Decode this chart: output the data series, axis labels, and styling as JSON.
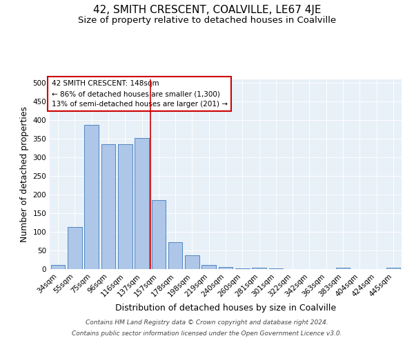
{
  "title": "42, SMITH CRESCENT, COALVILLE, LE67 4JE",
  "subtitle": "Size of property relative to detached houses in Coalville",
  "xlabel": "Distribution of detached houses by size in Coalville",
  "ylabel": "Number of detached properties",
  "categories": [
    "34sqm",
    "55sqm",
    "75sqm",
    "96sqm",
    "116sqm",
    "137sqm",
    "157sqm",
    "178sqm",
    "198sqm",
    "219sqm",
    "240sqm",
    "260sqm",
    "281sqm",
    "301sqm",
    "322sqm",
    "342sqm",
    "363sqm",
    "383sqm",
    "404sqm",
    "424sqm",
    "445sqm"
  ],
  "values": [
    11,
    113,
    387,
    335,
    335,
    353,
    185,
    73,
    37,
    11,
    6,
    2,
    4,
    2,
    0,
    0,
    0,
    4,
    0,
    0,
    4
  ],
  "bar_color": "#aec6e8",
  "bar_edge_color": "#4f86c0",
  "vline_x": 5.5,
  "vline_color": "#cc0000",
  "annotation_text": "42 SMITH CRESCENT: 148sqm\n← 86% of detached houses are smaller (1,300)\n13% of semi-detached houses are larger (201) →",
  "annotation_box_color": "#ffffff",
  "annotation_box_edge_color": "#cc0000",
  "ylim": [
    0,
    510
  ],
  "yticks": [
    0,
    50,
    100,
    150,
    200,
    250,
    300,
    350,
    400,
    450,
    500
  ],
  "background_color": "#e8f0f8",
  "footer_line1": "Contains HM Land Registry data © Crown copyright and database right 2024.",
  "footer_line2": "Contains public sector information licensed under the Open Government Licence v3.0.",
  "title_fontsize": 11,
  "subtitle_fontsize": 9.5,
  "label_fontsize": 9,
  "tick_fontsize": 7.5,
  "footer_fontsize": 6.5,
  "annotation_fontsize": 7.5
}
